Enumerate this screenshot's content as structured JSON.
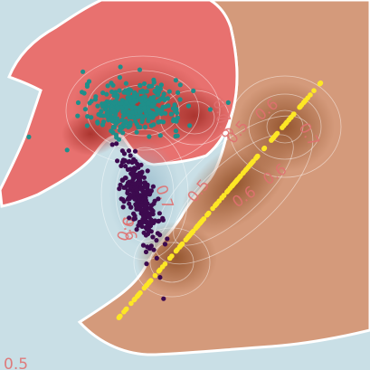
{
  "chart_data": {
    "type": "scatter",
    "description_free": true,
    "xlim": [
      0,
      10
    ],
    "ylim": [
      0,
      10
    ],
    "grid": false,
    "axes_visible": false,
    "background_color": "#c9dfe6",
    "regions": [
      {
        "class": "red",
        "color": "#e8716f"
      },
      {
        "class": "brown",
        "color": "#d49a7b"
      },
      {
        "class": "blue",
        "color": "#c9dfe6"
      }
    ],
    "density_peak_color": "#b03a32",
    "level_labels": [
      "0.6",
      "0.7",
      "0.5",
      "0.6",
      "0.7",
      "0.5",
      "0.6",
      "0.6",
      "0.6",
      "0.7",
      "0.6",
      "0.5"
    ],
    "series": [
      {
        "name": "",
        "color": "#1f8f8a",
        "center": [
          3.6,
          7.1
        ],
        "spread": [
          1.1,
          0.55
        ],
        "n": 330
      },
      {
        "name": "",
        "color": "#3d0a4f",
        "center": [
          3.8,
          4.6
        ],
        "spread": [
          0.35,
          1.1
        ],
        "n": 260
      },
      {
        "name": "",
        "color": "#fde725",
        "line_from": [
          3.2,
          1.4
        ],
        "line_to": [
          8.7,
          7.8
        ],
        "n": 140
      }
    ]
  }
}
